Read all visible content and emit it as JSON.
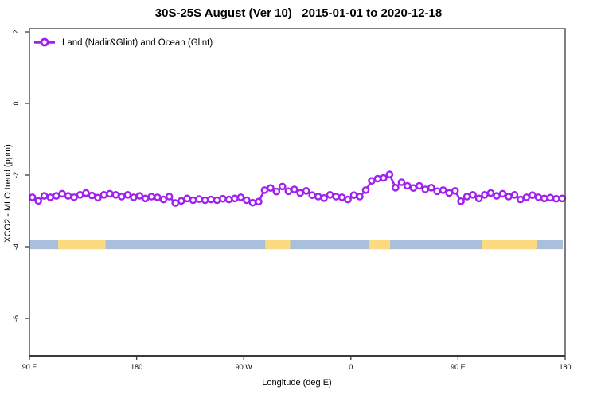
{
  "title": "30S-25S August (Ver 10)   2015-01-01 to 2020-12-18",
  "legend": {
    "label": "Land (Nadir&Glint) and Ocean (Glint)"
  },
  "axes": {
    "x_label": "Longitude (deg E)",
    "y_label": "XCO2 - MLO trend (ppm)"
  },
  "colors": {
    "series": "#A020F0",
    "band_base": "#A9BFDC",
    "band_highlight": "#FBDA82",
    "frame": "#3a3a3a",
    "text": "#000000"
  },
  "chart_data": {
    "type": "line",
    "title": "30S-25S August (Ver 10)   2015-01-01 to 2020-12-18",
    "xlabel": "Longitude (deg E)",
    "ylabel": "XCO2 - MLO trend (ppm)",
    "grid": false,
    "legend_position": "top-left",
    "xlim": [
      90,
      540
    ],
    "ylim": [
      -7.1,
      2.1
    ],
    "x_ticks": [
      {
        "lon": 90,
        "label": "90 E"
      },
      {
        "lon": 180,
        "label": "180"
      },
      {
        "lon": 270,
        "label": "90 W"
      },
      {
        "lon": 360,
        "label": "0"
      },
      {
        "lon": 450,
        "label": "90 E"
      },
      {
        "lon": 540,
        "label": "180"
      }
    ],
    "y_ticks": [
      {
        "value": 2,
        "label": "2"
      },
      {
        "value": 0,
        "label": "0"
      },
      {
        "value": -2,
        "label": "-2"
      },
      {
        "value": -4,
        "label": "-4"
      },
      {
        "value": -6,
        "label": "-6"
      }
    ],
    "series": [
      {
        "name": "Land (Nadir&Glint) and Ocean (Glint)",
        "color": "#A020F0",
        "marker": "open-circle",
        "x": [
          92.5,
          97.5,
          102.5,
          107.5,
          112.5,
          117.5,
          122.5,
          127.5,
          132.5,
          137.5,
          142.5,
          147.5,
          152.5,
          157.5,
          162.5,
          167.5,
          172.5,
          177.5,
          182.5,
          187.5,
          192.5,
          197.5,
          202.5,
          207.5,
          212.5,
          217.5,
          222.5,
          227.5,
          232.5,
          237.5,
          242.5,
          247.5,
          252.5,
          257.5,
          262.5,
          267.5,
          272.5,
          277.5,
          282.5,
          287.5,
          292.5,
          297.5,
          302.5,
          307.5,
          312.5,
          317.5,
          322.5,
          327.5,
          332.5,
          337.5,
          342.5,
          347.5,
          352.5,
          357.5,
          362.5,
          367.5,
          372.5,
          377.5,
          382.5,
          387.5,
          392.5,
          397.5,
          402.5,
          407.5,
          412.5,
          417.5,
          422.5,
          427.5,
          432.5,
          437.5,
          442.5,
          447.5,
          452.5,
          457.5,
          462.5,
          467.5,
          472.5,
          477.5,
          482.5,
          487.5,
          492.5,
          497.5,
          502.5,
          507.5,
          512.5,
          517.5,
          522.5,
          527.5,
          532.5,
          537.5
        ],
        "y": [
          -2.62,
          -2.72,
          -2.58,
          -2.62,
          -2.58,
          -2.52,
          -2.58,
          -2.62,
          -2.55,
          -2.5,
          -2.57,
          -2.63,
          -2.55,
          -2.52,
          -2.55,
          -2.6,
          -2.55,
          -2.62,
          -2.58,
          -2.65,
          -2.6,
          -2.62,
          -2.68,
          -2.6,
          -2.78,
          -2.72,
          -2.65,
          -2.7,
          -2.67,
          -2.7,
          -2.68,
          -2.7,
          -2.66,
          -2.68,
          -2.65,
          -2.62,
          -2.7,
          -2.77,
          -2.74,
          -2.42,
          -2.36,
          -2.46,
          -2.32,
          -2.45,
          -2.4,
          -2.5,
          -2.44,
          -2.56,
          -2.6,
          -2.64,
          -2.55,
          -2.6,
          -2.62,
          -2.68,
          -2.56,
          -2.6,
          -2.42,
          -2.16,
          -2.1,
          -2.08,
          -1.98,
          -2.35,
          -2.2,
          -2.3,
          -2.36,
          -2.3,
          -2.4,
          -2.35,
          -2.45,
          -2.42,
          -2.5,
          -2.44,
          -2.73,
          -2.6,
          -2.55,
          -2.65,
          -2.55,
          -2.5,
          -2.58,
          -2.52,
          -2.6,
          -2.55,
          -2.68,
          -2.62,
          -2.56,
          -2.62,
          -2.65,
          -2.63,
          -2.66,
          -2.65
        ]
      }
    ],
    "surface_band": {
      "description": "horizontal surface-type strip near y = -3.9",
      "y_top": -3.8,
      "y_bottom": -4.07,
      "x_start": 90.5,
      "x_end": 538,
      "base_color": "#A9BFDC",
      "highlight_color": "#FBDA82",
      "highlight_segments": [
        [
          114,
          154
        ],
        [
          288,
          309
        ],
        [
          375,
          393
        ],
        [
          470,
          516
        ]
      ]
    }
  }
}
